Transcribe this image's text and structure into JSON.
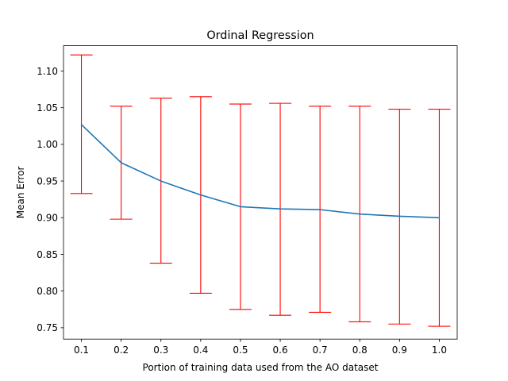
{
  "chart_data": {
    "type": "line",
    "title": "Ordinal Regression",
    "xlabel": "Portion of training data used from the AO dataset",
    "ylabel": "Mean Error",
    "x": [
      0.1,
      0.2,
      0.3,
      0.4,
      0.5,
      0.6,
      0.7,
      0.8,
      0.9,
      1.0
    ],
    "x_tick_labels": [
      "0.1",
      "0.2",
      "0.3",
      "0.4",
      "0.5",
      "0.6",
      "0.7",
      "0.8",
      "0.9",
      "1.0"
    ],
    "y_ticks": [
      0.75,
      0.8,
      0.85,
      0.9,
      0.95,
      1.0,
      1.05,
      1.1
    ],
    "y_tick_labels": [
      "0.75",
      "0.80",
      "0.85",
      "0.90",
      "0.95",
      "1.00",
      "1.05",
      "1.10"
    ],
    "xlim": [
      0.055,
      1.045
    ],
    "ylim": [
      0.7345,
      1.1345
    ],
    "grid": false,
    "series": [
      {
        "values": [
          1.027,
          0.975,
          0.95,
          0.931,
          0.915,
          0.912,
          0.911,
          0.905,
          0.902,
          0.9
        ],
        "error_lower": [
          0.933,
          0.898,
          0.838,
          0.797,
          0.775,
          0.767,
          0.771,
          0.758,
          0.755,
          0.752
        ],
        "error_upper": [
          1.122,
          1.052,
          1.063,
          1.065,
          1.055,
          1.056,
          1.052,
          1.052,
          1.048,
          1.048
        ],
        "color": "#1f77b4",
        "error_color": "#ff0000"
      }
    ]
  }
}
